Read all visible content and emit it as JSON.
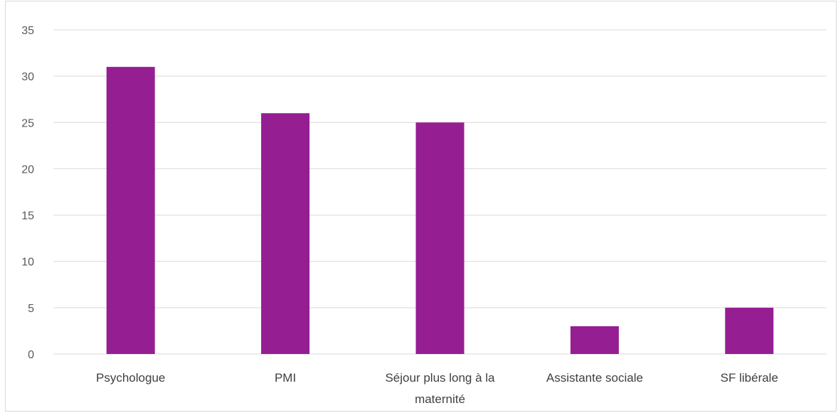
{
  "chart_data": {
    "type": "bar",
    "categories": [
      "Psychologue",
      "PMI",
      "Séjour plus long à la maternité",
      "Assistante sociale",
      "SF libérale"
    ],
    "category_lines": [
      [
        "Psychologue"
      ],
      [
        "PMI"
      ],
      [
        "Séjour plus long à la",
        "maternité"
      ],
      [
        "Assistante sociale"
      ],
      [
        "SF libérale"
      ]
    ],
    "values": [
      31,
      26,
      25,
      3,
      5
    ],
    "yticks": [
      "0",
      "5",
      "10",
      "15",
      "20",
      "25",
      "30",
      "35"
    ],
    "ylim": [
      0,
      35
    ],
    "title": "",
    "xlabel": "",
    "ylabel": "",
    "grid": true,
    "legend": "none",
    "colors": {
      "bar": "#951e93",
      "grid": "#d9d9d9",
      "border": "#d9d9d9",
      "tick_text": "#595959"
    }
  }
}
